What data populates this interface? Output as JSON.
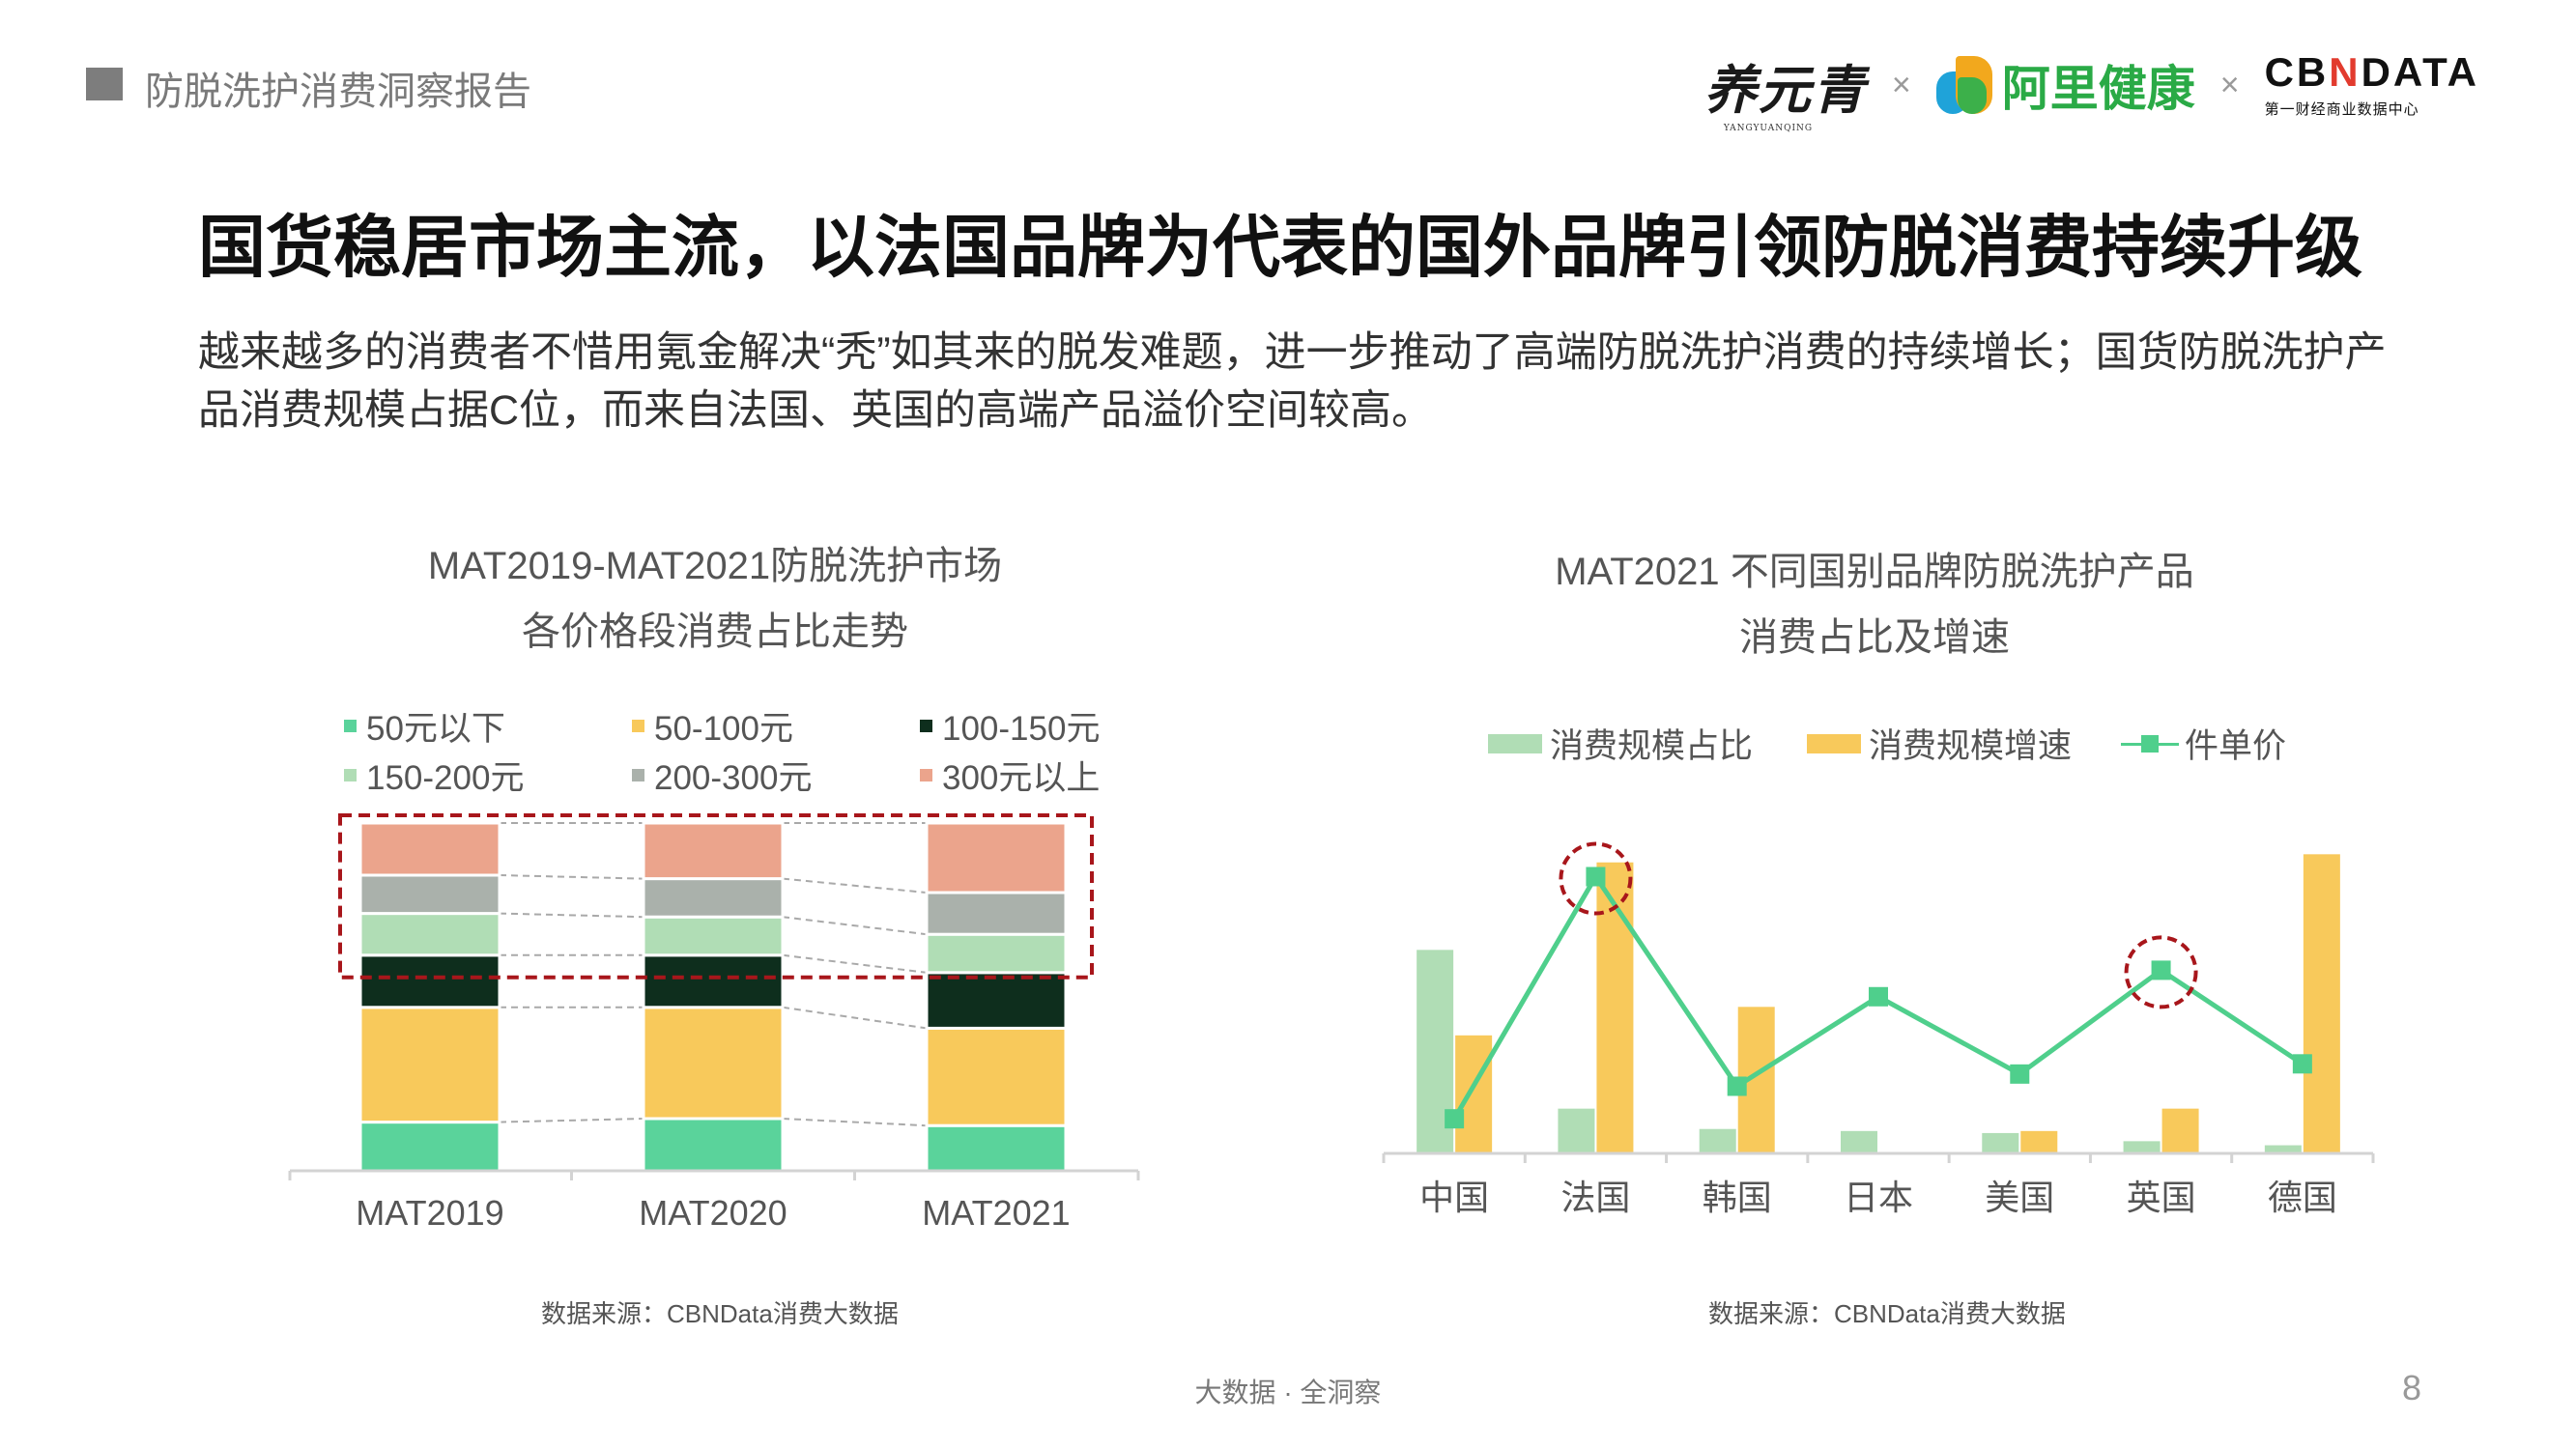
{
  "header": {
    "report_title": "防脱洗护消费洞察报告",
    "logos": {
      "partner1": "养元青",
      "partner1_sub": "YANGYUANQING",
      "x1": "×",
      "partner2": "阿里健康",
      "x2": "×",
      "partner3_a": "CB",
      "partner3_n": "N",
      "partner3_b": "DATA",
      "partner3_sub": "第一财经商业数据中心"
    }
  },
  "main": {
    "title": "国货稳居市场主流，以法国品牌为代表的国外品牌引领防脱消费持续升级",
    "description": "越来越多的消费者不惜用氪金解决“秃”如其来的脱发难题，进一步推动了高端防脱洗护消费的持续增长；国货防脱洗护产品消费规模占据C位，而来自法国、英国的高端产品溢价空间较高。"
  },
  "chart_data": [
    {
      "type": "bar",
      "stacked": true,
      "title_line1": "MAT2019-MAT2021防脱洗护市场",
      "title_line2": "各价格段消费占比走势",
      "categories": [
        "MAT2019",
        "MAT2020",
        "MAT2021"
      ],
      "series": [
        {
          "name": "50元以下",
          "color": "#5ad39b",
          "values": [
            14,
            15,
            13
          ]
        },
        {
          "name": "50-100元",
          "color": "#f8c95b",
          "values": [
            33,
            32,
            28
          ]
        },
        {
          "name": "100-150元",
          "color": "#0e2e1d",
          "values": [
            15,
            15,
            16
          ]
        },
        {
          "name": "150-200元",
          "color": "#b0ddb5",
          "values": [
            12,
            11,
            11
          ]
        },
        {
          "name": "200-300元",
          "color": "#aab1ab",
          "values": [
            11,
            11,
            12
          ]
        },
        {
          "name": "300元以上",
          "color": "#eba48c",
          "values": [
            15,
            16,
            20
          ]
        }
      ],
      "highlight_color": "#a8161b",
      "source": "数据来源：CBNData消费大数据"
    },
    {
      "type": "bar",
      "combo_line": true,
      "title_line1": "MAT2021 不同国别品牌防脱洗护产品",
      "title_line2": "消费占比及增速",
      "categories": [
        "中国",
        "法国",
        "韩国",
        "日本",
        "美国",
        "英国",
        "德国"
      ],
      "series": [
        {
          "name": "消费规模占比",
          "kind": "bar",
          "color": "#b0ddb5",
          "values": [
            100,
            22,
            12,
            11,
            10,
            6,
            4
          ]
        },
        {
          "name": "消费规模增速",
          "kind": "bar",
          "color": "#f8c95b",
          "values": [
            58,
            143,
            72,
            0,
            11,
            22,
            147
          ]
        },
        {
          "name": "件单价",
          "kind": "line",
          "color": "#4fcf8c",
          "values": [
            17,
            136,
            33,
            77,
            39,
            90,
            44
          ]
        }
      ],
      "ylim": [
        0,
        150
      ],
      "highlighted_categories": [
        "法国",
        "英国"
      ],
      "highlight_color": "#a8161b",
      "source": "数据来源：CBNData消费大数据"
    }
  ],
  "footer": {
    "tagline": "大数据 · 全洞察",
    "page_number": "8"
  }
}
